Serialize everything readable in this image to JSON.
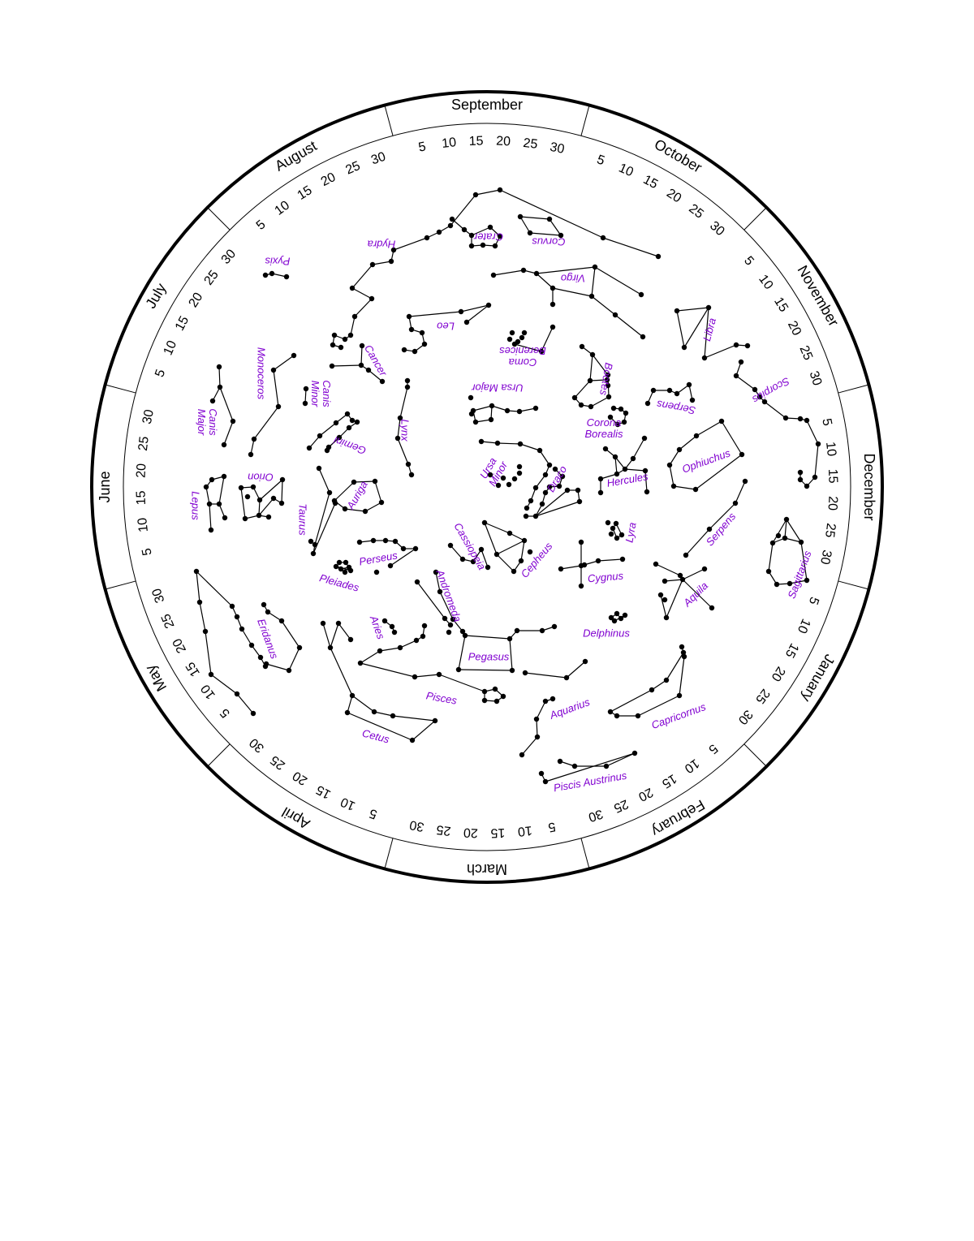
{
  "colors": {
    "ink": "#000000",
    "label": "#8000d0",
    "background": "#ffffff"
  },
  "months": [
    {
      "name": "September",
      "days": [
        "5",
        "10",
        "15",
        "20",
        "25",
        "30"
      ]
    },
    {
      "name": "October",
      "days": [
        "5",
        "10",
        "15",
        "20",
        "25",
        "30"
      ]
    },
    {
      "name": "November",
      "days": [
        "5",
        "10",
        "15",
        "20",
        "25",
        "30"
      ]
    },
    {
      "name": "December",
      "days": [
        "5",
        "10",
        "15",
        "20",
        "25",
        "30"
      ]
    },
    {
      "name": "January",
      "days": [
        "5",
        "10",
        "15",
        "20",
        "25",
        "30"
      ]
    },
    {
      "name": "February",
      "days": [
        "5",
        "10",
        "15",
        "20",
        "25",
        "30"
      ]
    },
    {
      "name": "March",
      "days": [
        "5",
        "10",
        "15",
        "20",
        "25",
        "30"
      ]
    },
    {
      "name": "April",
      "days": [
        "5",
        "10",
        "15",
        "20",
        "25",
        "30"
      ]
    },
    {
      "name": "May",
      "days": [
        "5",
        "10",
        "15",
        "20",
        "25",
        "30"
      ]
    },
    {
      "name": "June",
      "days": [
        "5",
        "10",
        "15",
        "20",
        "25",
        "30"
      ]
    },
    {
      "name": "July",
      "days": [
        "5",
        "10",
        "15",
        "20",
        "25",
        "30"
      ]
    },
    {
      "name": "August",
      "days": [
        "5",
        "10",
        "15",
        "20",
        "25",
        "30"
      ]
    }
  ],
  "constellations": [
    {
      "id": "hydra",
      "label": "Hydra"
    },
    {
      "id": "crater",
      "label": "Crater"
    },
    {
      "id": "corvus",
      "label": "Corvus"
    },
    {
      "id": "pyxis",
      "label": "Pyxis"
    },
    {
      "id": "virgo",
      "label": "Virgo"
    },
    {
      "id": "leo",
      "label": "Leo"
    },
    {
      "id": "coma",
      "label": "Coma Berenices"
    },
    {
      "id": "libra",
      "label": "Libra"
    },
    {
      "id": "cancer",
      "label": "Cancer"
    },
    {
      "id": "monoceros",
      "label": "Monoceros"
    },
    {
      "id": "canis-minor",
      "label": "Canis Minor"
    },
    {
      "id": "canis-major",
      "label": "Canis Major"
    },
    {
      "id": "bootes",
      "label": "Bootes"
    },
    {
      "id": "scorpius",
      "label": "Scorpius"
    },
    {
      "id": "ursa-major",
      "label": "Ursa Major"
    },
    {
      "id": "lynx",
      "label": "Lynx"
    },
    {
      "id": "gemini",
      "label": "Gemini"
    },
    {
      "id": "serpens-caput",
      "label": "Serpens"
    },
    {
      "id": "corona",
      "label": "Corona Borealis"
    },
    {
      "id": "orion",
      "label": "Orion"
    },
    {
      "id": "lepus",
      "label": "Lepus"
    },
    {
      "id": "ursa-minor",
      "label": "Ursa Minor"
    },
    {
      "id": "ophiuchus",
      "label": "Ophiuchus"
    },
    {
      "id": "draco",
      "label": "Draco"
    },
    {
      "id": "hercules",
      "label": "Hercules"
    },
    {
      "id": "auriga",
      "label": "Auriga"
    },
    {
      "id": "taurus",
      "label": "Taurus"
    },
    {
      "id": "serpens-cauda",
      "label": "Serpens"
    },
    {
      "id": "lyra",
      "label": "Lyra"
    },
    {
      "id": "cassiopeia",
      "label": "Cassiopeia"
    },
    {
      "id": "perseus",
      "label": "Perseus"
    },
    {
      "id": "cepheus",
      "label": "Cepheus"
    },
    {
      "id": "sagittarius",
      "label": "Sagittarius"
    },
    {
      "id": "pleiades",
      "label": "Pleiades"
    },
    {
      "id": "andromeda",
      "label": "Andromeda"
    },
    {
      "id": "cygnus",
      "label": "Cygnus"
    },
    {
      "id": "aquila",
      "label": "Aquila"
    },
    {
      "id": "eridanus",
      "label": "Eridanus"
    },
    {
      "id": "aries",
      "label": "Aries"
    },
    {
      "id": "delphinus",
      "label": "Delphinus"
    },
    {
      "id": "pegasus",
      "label": "Pegasus"
    },
    {
      "id": "pisces",
      "label": "Pisces"
    },
    {
      "id": "aquarius",
      "label": "Aquarius"
    },
    {
      "id": "capricornus",
      "label": "Capricornus"
    },
    {
      "id": "cetus",
      "label": "Cetus"
    },
    {
      "id": "piscis-austrinus",
      "label": "Piscis Austrinus"
    }
  ]
}
